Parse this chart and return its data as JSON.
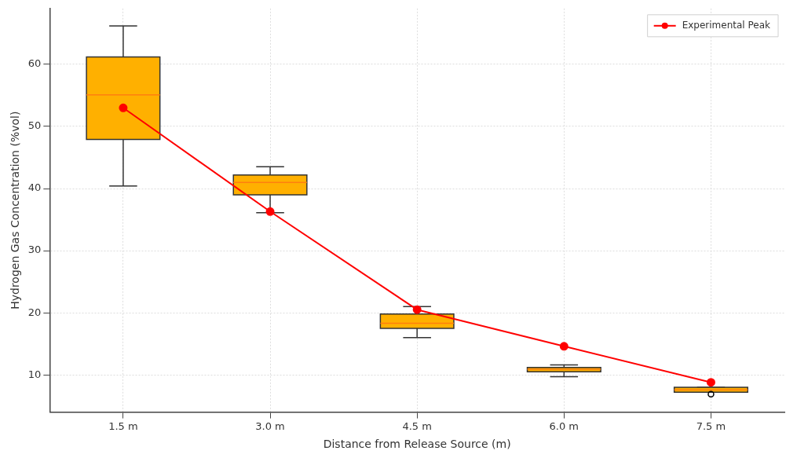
{
  "chart_data": {
    "type": "box",
    "xlabel": "Distance from Release Source (m)",
    "ylabel": "Hydrogen Gas Concentration (%vol)",
    "categories": [
      "1.5 m",
      "3.0 m",
      "4.5 m",
      "6.0 m",
      "7.5 m"
    ],
    "ylim": [
      4,
      69
    ],
    "yticks": [
      10,
      20,
      30,
      40,
      50,
      60
    ],
    "grid": true,
    "legend": "top right",
    "marker": "circle",
    "series": [
      {
        "color": "#ffb000",
        "boxes": [
          {
            "low": 40.4,
            "q1": 47.9,
            "median": 55.1,
            "q3": 61.2,
            "high": 66.2
          },
          {
            "low": 36.1,
            "q1": 39.0,
            "median": 41.0,
            "q3": 42.2,
            "high": 43.5
          },
          {
            "low": 16.0,
            "q1": 17.5,
            "median": 18.3,
            "q3": 19.8,
            "high": 21.0
          },
          {
            "low": 9.7,
            "q1": 10.5,
            "median": 10.9,
            "q3": 11.2,
            "high": 11.6
          },
          {
            "low": 7.2,
            "q1": 7.2,
            "median": 7.6,
            "q3": 8.0,
            "high": 8.0,
            "outliers": [
              6.9
            ]
          }
        ]
      },
      {
        "type": "line",
        "name": "Experimental Peak",
        "color": "#ff0000",
        "values": [
          53.0,
          36.3,
          20.5,
          14.6,
          8.8
        ]
      }
    ]
  }
}
